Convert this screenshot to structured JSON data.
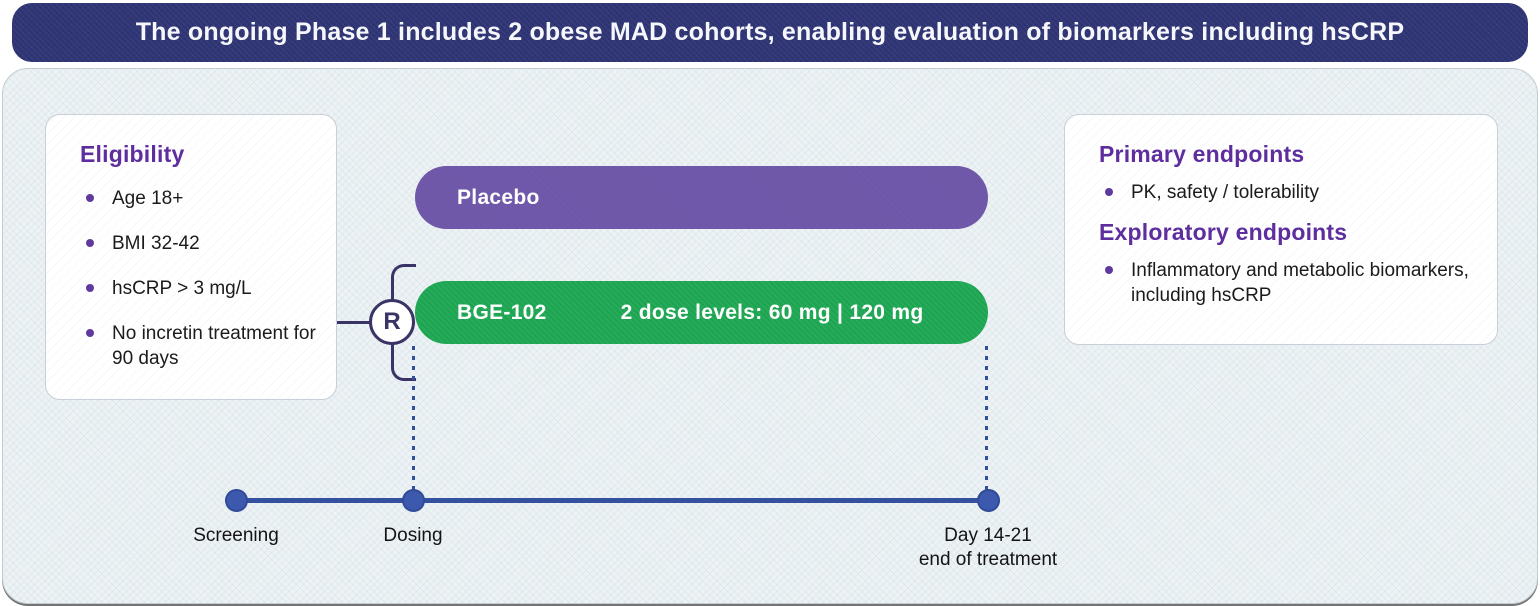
{
  "header": {
    "title": "The ongoing Phase 1 includes 2 obese MAD cohorts, enabling evaluation of biomarkers including hsCRP"
  },
  "eligibility": {
    "title": "Eligibility",
    "items": [
      "Age 18+",
      "BMI 32-42",
      "hsCRP > 3 mg/L",
      "No incretin treatment for 90 days"
    ]
  },
  "randomization": {
    "label": "R"
  },
  "arms": [
    {
      "name": "Placebo",
      "detail": ""
    },
    {
      "name": "BGE-102",
      "detail": "2 dose levels: 60 mg | 120 mg"
    }
  ],
  "endpoints": {
    "primary_title": "Primary endpoints",
    "primary_items": [
      "PK, safety / tolerability"
    ],
    "exploratory_title": "Exploratory endpoints",
    "exploratory_items": [
      "Inflammatory and metabolic biomarkers, including hsCRP"
    ]
  },
  "timeline": {
    "milestones": [
      {
        "label": "Screening",
        "sublabel": ""
      },
      {
        "label": "Dosing",
        "sublabel": ""
      },
      {
        "label": "Day 14-21",
        "sublabel": "end of treatment"
      }
    ]
  },
  "colors": {
    "header_navy": "#2c3474",
    "panel_background": "#edf2f4",
    "accent_purple_text": "#5e2d9e",
    "placebo_pill_purple": "#6e5aab",
    "bge_pill_green": "#1ca551",
    "timeline_blue": "#33519f",
    "connector_indigo": "#3a3365",
    "body_text": "#1b1b1b"
  }
}
